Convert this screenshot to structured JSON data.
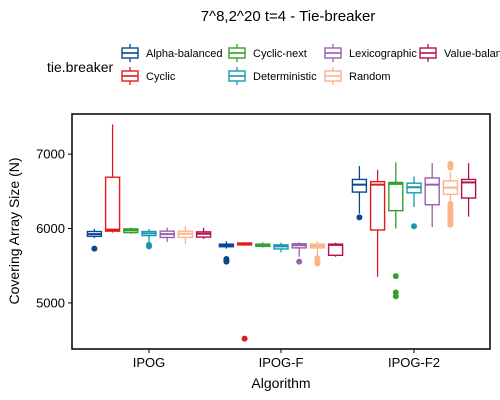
{
  "chart_data": {
    "type": "boxplot",
    "title": "7^8,2^20 t=4 - Tie-breaker",
    "xlabel": "Algorithm",
    "ylabel": "Covering Array Size (N)",
    "ylim": [
      4380,
      7540
    ],
    "yticks": [
      5000,
      6000,
      7000
    ],
    "grid": false,
    "legend": {
      "title": "tie.breaker",
      "placement": "top"
    },
    "categories": [
      "IPOG",
      "IPOG-F",
      "IPOG-F2"
    ],
    "series": [
      {
        "name": "Alpha-balanced",
        "color": "#08488e",
        "boxes": [
          {
            "category": "IPOG",
            "whisker_low": 5870,
            "q1": 5895,
            "median": 5925,
            "q3": 5960,
            "whisker_high": 5995,
            "outliers": [
              5730
            ]
          },
          {
            "category": "IPOG-F",
            "whisker_low": 5730,
            "q1": 5755,
            "median": 5775,
            "q3": 5790,
            "whisker_high": 5830,
            "outliers": [
              5590,
              5570,
              5555
            ]
          },
          {
            "category": "IPOG-F2",
            "whisker_low": 6200,
            "q1": 6490,
            "median": 6590,
            "q3": 6660,
            "whisker_high": 6840,
            "outliers": [
              6150
            ]
          }
        ]
      },
      {
        "name": "Cyclic",
        "color": "#e31a1c",
        "boxes": [
          {
            "category": "IPOG",
            "whisker_low": 5945,
            "q1": 5965,
            "median": 5985,
            "q3": 6690,
            "whisker_high": 7400,
            "outliers": []
          },
          {
            "category": "IPOG-F",
            "whisker_low": 5770,
            "q1": 5780,
            "median": 5795,
            "q3": 5805,
            "whisker_high": 5815,
            "outliers": [
              4520
            ]
          },
          {
            "category": "IPOG-F2",
            "whisker_low": 5350,
            "q1": 5980,
            "median": 6590,
            "q3": 6630,
            "whisker_high": 6790,
            "outliers": []
          }
        ]
      },
      {
        "name": "Cyclic-next",
        "color": "#33a02c",
        "boxes": [
          {
            "category": "IPOG",
            "whisker_low": 5930,
            "q1": 5945,
            "median": 5975,
            "q3": 5995,
            "whisker_high": 6010,
            "outliers": []
          },
          {
            "category": "IPOG-F",
            "whisker_low": 5745,
            "q1": 5760,
            "median": 5780,
            "q3": 5790,
            "whisker_high": 5815,
            "outliers": []
          },
          {
            "category": "IPOG-F2",
            "whisker_low": 6000,
            "q1": 6240,
            "median": 6600,
            "q3": 6620,
            "whisker_high": 6890,
            "outliers": [
              5360,
              5140,
              5090
            ]
          }
        ]
      },
      {
        "name": "Deterministic",
        "color": "#1798b0",
        "boxes": [
          {
            "category": "IPOG",
            "whisker_low": 5820,
            "q1": 5905,
            "median": 5935,
            "q3": 5960,
            "whisker_high": 5995,
            "outliers": [
              5780,
              5760
            ]
          },
          {
            "category": "IPOG-F",
            "whisker_low": 5680,
            "q1": 5725,
            "median": 5760,
            "q3": 5780,
            "whisker_high": 5810,
            "outliers": []
          },
          {
            "category": "IPOG-F2",
            "whisker_low": 6290,
            "q1": 6480,
            "median": 6555,
            "q3": 6610,
            "whisker_high": 6700,
            "outliers": [
              6030
            ]
          }
        ]
      },
      {
        "name": "Lexicographic",
        "color": "#9b5fb0",
        "boxes": [
          {
            "category": "IPOG",
            "whisker_low": 5820,
            "q1": 5880,
            "median": 5925,
            "q3": 5965,
            "whisker_high": 6010,
            "outliers": []
          },
          {
            "category": "IPOG-F",
            "whisker_low": 5620,
            "q1": 5740,
            "median": 5775,
            "q3": 5795,
            "whisker_high": 5815,
            "outliers": [
              5555
            ]
          },
          {
            "category": "IPOG-F2",
            "whisker_low": 6020,
            "q1": 6320,
            "median": 6590,
            "q3": 6680,
            "whisker_high": 6880,
            "outliers": []
          }
        ]
      },
      {
        "name": "Random",
        "color": "#f9b48a",
        "boxes": [
          {
            "category": "IPOG",
            "whisker_low": 5790,
            "q1": 5880,
            "median": 5930,
            "q3": 5965,
            "whisker_high": 6030,
            "outliers": []
          },
          {
            "category": "IPOG-F",
            "whisker_low": 5620,
            "q1": 5740,
            "median": 5765,
            "q3": 5790,
            "whisker_high": 5830,
            "outliers": [
              5600,
              5580,
              5560,
              5545,
              5530
            ]
          },
          {
            "category": "IPOG-F2",
            "whisker_low": 6350,
            "q1": 6460,
            "median": 6550,
            "q3": 6640,
            "whisker_high": 6760,
            "outliers": [
              6870,
              6850,
              6820,
              6330,
              6300,
              6260,
              6230,
              6200,
              6170,
              6140,
              6110,
              6080,
              6050
            ]
          }
        ]
      },
      {
        "name": "Value-balanced",
        "color": "#b5114a",
        "boxes": [
          {
            "category": "IPOG",
            "whisker_low": 5860,
            "q1": 5885,
            "median": 5930,
            "q3": 5955,
            "whisker_high": 6010,
            "outliers": []
          },
          {
            "category": "IPOG-F",
            "whisker_low": 5620,
            "q1": 5640,
            "median": 5780,
            "q3": 5790,
            "whisker_high": 5810,
            "outliers": []
          },
          {
            "category": "IPOG-F2",
            "whisker_low": 6160,
            "q1": 6410,
            "median": 6620,
            "q3": 6660,
            "whisker_high": 6880,
            "outliers": []
          }
        ]
      }
    ]
  }
}
